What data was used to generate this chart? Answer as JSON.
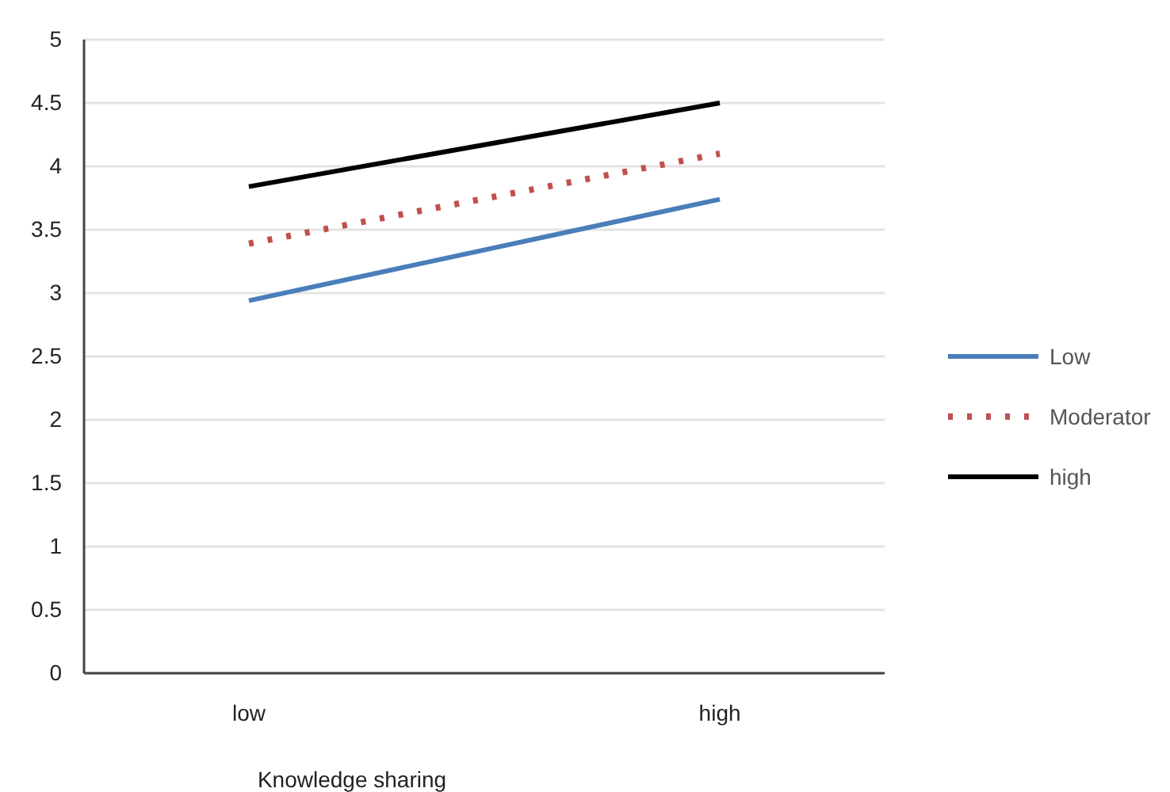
{
  "chart_data": {
    "type": "line",
    "xlabel": "Knowledge sharing",
    "categories": [
      "low",
      "high"
    ],
    "series": [
      {
        "name": "Low",
        "color": "#4a7ebb",
        "values": [
          2.94,
          3.74
        ],
        "line_style": "solid"
      },
      {
        "name": "Moderator",
        "color": "#c0504d",
        "values": [
          3.39,
          4.1
        ],
        "line_style": "dotted"
      },
      {
        "name": "high",
        "color": "#000000",
        "values": [
          3.84,
          4.5
        ],
        "line_style": "solid"
      }
    ],
    "ylim": [
      0,
      5
    ],
    "yticks": [
      0,
      0.5,
      1,
      1.5,
      2,
      2.5,
      3,
      3.5,
      4,
      4.5,
      5
    ],
    "grid": "y",
    "legend": "right",
    "marker": "none"
  }
}
